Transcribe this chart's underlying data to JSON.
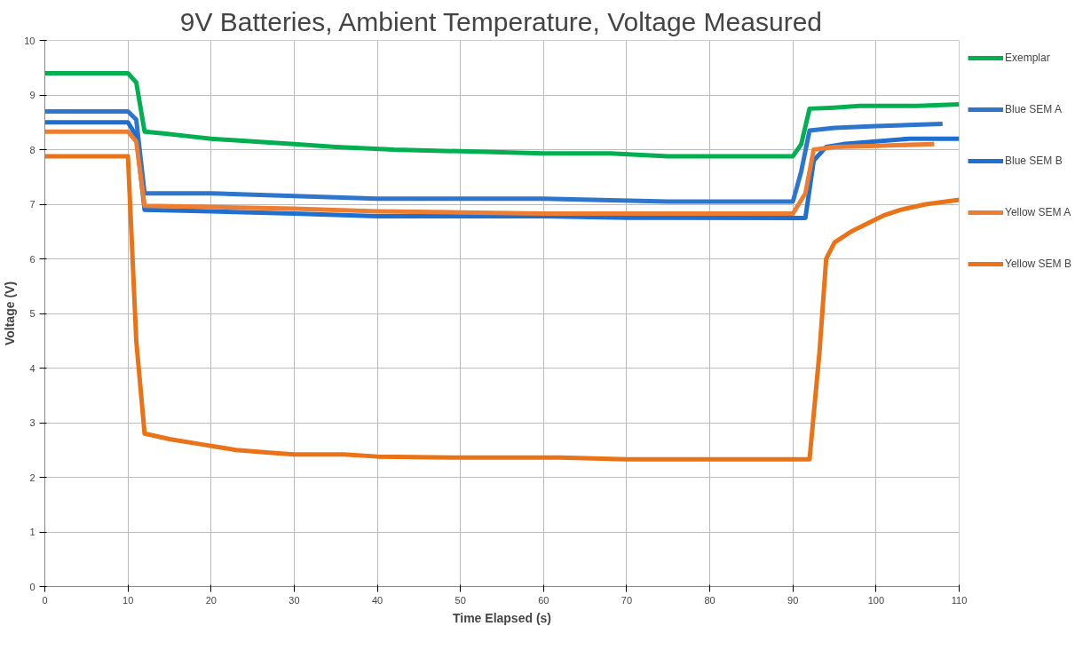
{
  "chart_data": {
    "type": "line",
    "title": "9V Batteries, Ambient Temperature, Voltage Measured",
    "xlabel": "Time Elapsed (s)",
    "ylabel": "Voltage (V)",
    "xlim": [
      0,
      110
    ],
    "xticks": [
      0,
      10,
      20,
      30,
      40,
      50,
      60,
      70,
      80,
      90,
      100,
      110
    ],
    "ylim": [
      0,
      10
    ],
    "yticks": [
      0,
      1,
      2,
      3,
      4,
      5,
      6,
      7,
      8,
      9,
      10
    ],
    "grid": true,
    "legend": "right",
    "line_style": "solid",
    "marker": "none",
    "series": [
      {
        "name": "Exemplar",
        "color": "#00b050",
        "x": [
          0,
          10,
          11,
          12,
          14,
          17,
          20,
          25,
          30,
          35,
          42,
          50,
          60,
          68,
          75,
          90,
          91,
          92,
          95,
          98,
          105,
          110
        ],
        "values": [
          9.4,
          9.4,
          9.23,
          8.33,
          8.3,
          8.25,
          8.2,
          8.15,
          8.1,
          8.05,
          8.0,
          7.97,
          7.93,
          7.93,
          7.88,
          7.88,
          8.1,
          8.75,
          8.77,
          8.8,
          8.8,
          8.83
        ]
      },
      {
        "name": "Blue SEM A",
        "color": "#2e75cc",
        "x": [
          0,
          10,
          11,
          12,
          20,
          30,
          40,
          60,
          75,
          90,
          91,
          92,
          95,
          100,
          108
        ],
        "values": [
          8.7,
          8.7,
          8.55,
          7.2,
          7.2,
          7.15,
          7.1,
          7.1,
          7.05,
          7.05,
          7.6,
          8.35,
          8.4,
          8.43,
          8.47
        ]
      },
      {
        "name": "Blue SEM B",
        "color": "#1f6fd0",
        "x": [
          0,
          10,
          11,
          12,
          20,
          30,
          40,
          60,
          70,
          91.5,
          92.5,
          94,
          96,
          100,
          104,
          110
        ],
        "values": [
          8.5,
          8.5,
          8.25,
          6.9,
          6.87,
          6.83,
          6.78,
          6.78,
          6.75,
          6.75,
          7.8,
          8.05,
          8.1,
          8.15,
          8.2,
          8.2
        ]
      },
      {
        "name": "Yellow SEM A",
        "color": "#ed7d31",
        "x": [
          0,
          10,
          11,
          12,
          20,
          30,
          40,
          50,
          60,
          90,
          91.5,
          92.5,
          95,
          100,
          107
        ],
        "values": [
          8.33,
          8.33,
          8.15,
          6.97,
          6.95,
          6.92,
          6.87,
          6.85,
          6.83,
          6.83,
          7.2,
          8.0,
          8.05,
          8.07,
          8.1
        ]
      },
      {
        "name": "Yellow SEM B",
        "color": "#e97316",
        "x": [
          0,
          10,
          11,
          12,
          15,
          19,
          23,
          27,
          30,
          36,
          40,
          50,
          62,
          70,
          92,
          93.2,
          94,
          95,
          97,
          99,
          101,
          103,
          106,
          110
        ],
        "values": [
          7.88,
          7.88,
          4.5,
          2.8,
          2.7,
          2.6,
          2.5,
          2.45,
          2.42,
          2.42,
          2.38,
          2.36,
          2.36,
          2.33,
          2.33,
          4.3,
          6.0,
          6.3,
          6.5,
          6.65,
          6.8,
          6.9,
          7.0,
          7.08
        ]
      }
    ]
  }
}
